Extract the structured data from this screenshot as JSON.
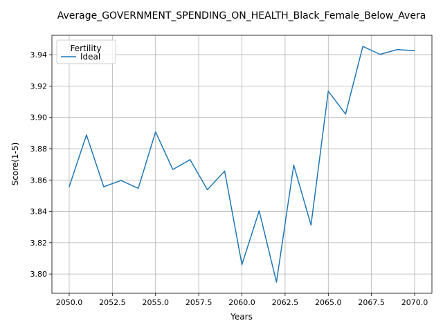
{
  "chart_data": {
    "type": "line",
    "title": "Average_GOVERNMENT_SPENDING_ON_HEALTH_Black_Female_Below_Avera",
    "xlabel": "Years",
    "ylabel": "Score(1-5)",
    "xlim": [
      2049.0,
      2071.0
    ],
    "ylim": [
      3.7877,
      3.9524
    ],
    "xticks": [
      2050.0,
      2052.5,
      2055.0,
      2057.5,
      2060.0,
      2062.5,
      2065.0,
      2067.5,
      2070.0
    ],
    "xtick_labels": [
      "2050.0",
      "2052.5",
      "2055.0",
      "2057.5",
      "2060.0",
      "2062.5",
      "2065.0",
      "2067.5",
      "2070.0"
    ],
    "yticks": [
      3.8,
      3.82,
      3.84,
      3.86,
      3.88,
      3.9,
      3.92,
      3.94
    ],
    "ytick_labels": [
      "3.80",
      "3.82",
      "3.84",
      "3.86",
      "3.88",
      "3.90",
      "3.92",
      "3.94"
    ],
    "grid": true,
    "legend": {
      "title": "Fertility",
      "position": "top-left"
    },
    "x": [
      2050,
      2051,
      2052,
      2053,
      2054,
      2055,
      2056,
      2057,
      2058,
      2059,
      2060,
      2061,
      2062,
      2063,
      2064,
      2065,
      2066,
      2067,
      2068,
      2069,
      2070
    ],
    "series": [
      {
        "name": "Ideal",
        "color": "#1f77b4",
        "values": [
          3.8557,
          3.8888,
          3.8557,
          3.8597,
          3.8547,
          3.8907,
          3.8667,
          3.873,
          3.8538,
          3.8657,
          3.806,
          3.8403,
          3.7948,
          3.8695,
          3.8312,
          3.9167,
          3.9021,
          3.9453,
          3.9402,
          3.9433,
          3.9425
        ]
      }
    ]
  }
}
